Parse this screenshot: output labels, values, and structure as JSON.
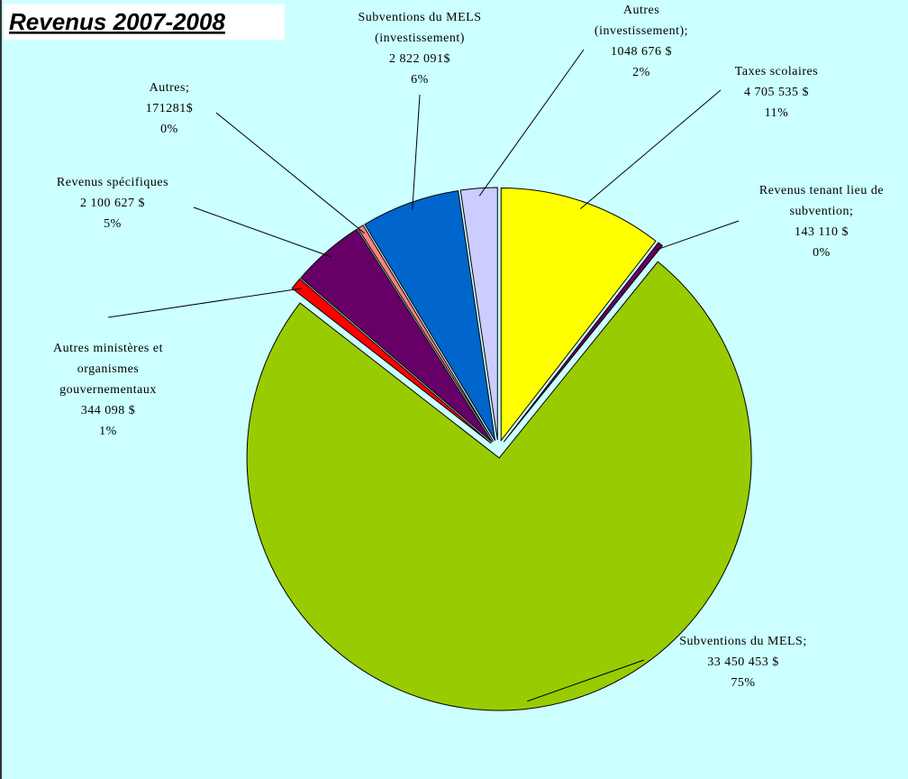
{
  "chart_data": {
    "type": "pie",
    "title": "Revenus 2007-2008",
    "categories": [
      [
        "Taxes scolaires"
      ],
      [
        "Revenus tenant lieu de",
        "subvention;"
      ],
      [
        "Subventions du MELS;"
      ],
      [
        "Autres ministères et",
        "organismes",
        "gouvernementaux"
      ],
      [
        "Revenus spécifiques"
      ],
      [
        "Autres;"
      ],
      [
        "Subventions du MELS",
        "(investissement)"
      ],
      [
        "Autres",
        "(investissement);"
      ]
    ],
    "values": [
      4705535,
      143110,
      33450453,
      344098,
      2100627,
      171281,
      2822091,
      1048676
    ],
    "value_labels": [
      "4 705 535 $",
      "143 110 $",
      "33 450 453 $",
      "344 098 $",
      "2 100 627 $",
      "171281$",
      "2 822 091$",
      "1048 676 $"
    ],
    "percent_labels": [
      "11%",
      "0%",
      "75%",
      "1%",
      "5%",
      "0%",
      "6%",
      "2%"
    ],
    "colors": [
      "#ffff00",
      "#660066",
      "#99cc00",
      "#ff0000",
      "#660066",
      "#ff8080",
      "#0066cc",
      "#ccccff"
    ]
  }
}
